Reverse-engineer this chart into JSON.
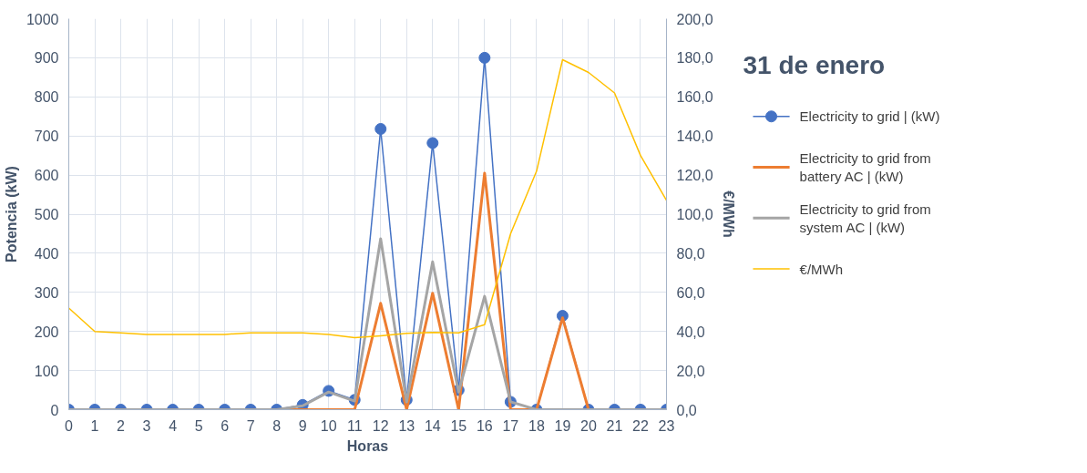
{
  "chart_data": {
    "type": "line",
    "title": "31 de enero",
    "xlabel": "Horas",
    "ylabel": "Potencia (kW)",
    "y2label": "€/MWh",
    "x": [
      0,
      1,
      2,
      3,
      4,
      5,
      6,
      7,
      8,
      9,
      10,
      11,
      12,
      13,
      14,
      15,
      16,
      17,
      18,
      19,
      20,
      21,
      22,
      23
    ],
    "xlim": [
      0,
      23
    ],
    "xticks": [
      0,
      1,
      2,
      3,
      4,
      5,
      6,
      7,
      8,
      9,
      10,
      11,
      12,
      13,
      14,
      15,
      16,
      17,
      18,
      19,
      20,
      21,
      22,
      23
    ],
    "ylim": [
      0,
      1000
    ],
    "yticks": [
      0,
      100,
      200,
      300,
      400,
      500,
      600,
      700,
      800,
      900,
      1000
    ],
    "y2lim": [
      0,
      200
    ],
    "y2ticks": [
      {
        "value": 0,
        "label": "0,0"
      },
      {
        "value": 20,
        "label": "20,0"
      },
      {
        "value": 40,
        "label": "40,0"
      },
      {
        "value": 60,
        "label": "60,0"
      },
      {
        "value": 80,
        "label": "80,0"
      },
      {
        "value": 100,
        "label": "100,0"
      },
      {
        "value": 120,
        "label": "120,0"
      },
      {
        "value": 140,
        "label": "140,0"
      },
      {
        "value": 160,
        "label": "160,0"
      },
      {
        "value": 180,
        "label": "180,0"
      },
      {
        "value": 200,
        "label": "200,0"
      }
    ],
    "grid": true,
    "legend": "right",
    "series": [
      {
        "name": "Electricity to grid | (kW)",
        "color": "#4472c4",
        "marker": "circle",
        "values": [
          0,
          0,
          0,
          0,
          0,
          0,
          0,
          0,
          0,
          12,
          48,
          25,
          718,
          25,
          682,
          50,
          900,
          20,
          0,
          240,
          0,
          0,
          0,
          0
        ]
      },
      {
        "name": "Electricity to grid from battery AC | (kW)",
        "color": "#ed7d31",
        "marker": "none",
        "values": [
          null,
          null,
          null,
          null,
          null,
          null,
          null,
          null,
          0,
          0,
          0,
          0,
          272,
          0,
          298,
          0,
          605,
          0,
          0,
          235,
          0,
          null,
          null,
          null
        ]
      },
      {
        "name": "Electricity to grid from system AC | (kW)",
        "color": "#a5a5a5",
        "marker": "none",
        "values": [
          0,
          0,
          0,
          0,
          0,
          0,
          0,
          0,
          0,
          10,
          45,
          22,
          437,
          20,
          378,
          45,
          290,
          20,
          0,
          0,
          0,
          0,
          0,
          0
        ]
      },
      {
        "name": "€/MWh",
        "color": "#ffc000",
        "marker": "none",
        "axis": "y2",
        "values": [
          52,
          40,
          39.3,
          38.5,
          38.5,
          38.5,
          38.5,
          39.3,
          39.3,
          39.3,
          38.5,
          36.8,
          37.8,
          39,
          39.5,
          39.3,
          43.5,
          90,
          122,
          179,
          172.5,
          162,
          130,
          107
        ]
      }
    ]
  }
}
